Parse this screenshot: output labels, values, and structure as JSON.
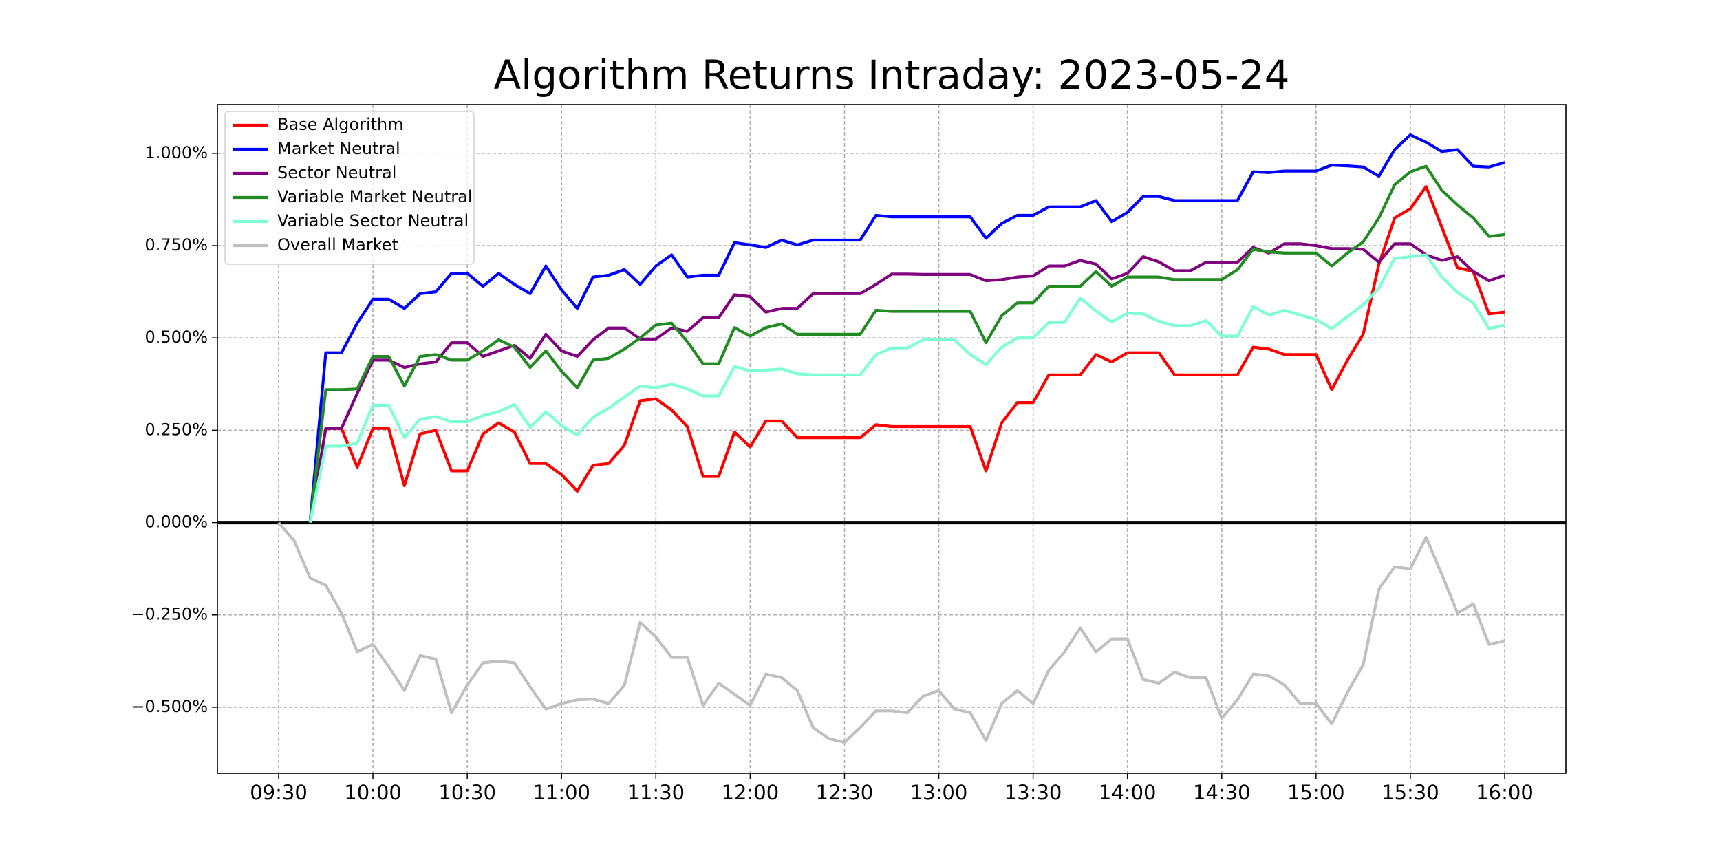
{
  "chart_data": {
    "type": "line",
    "title": "Algorithm Returns Intraday: 2023-05-24",
    "x": [
      "09:30",
      "09:35",
      "09:40",
      "09:45",
      "09:50",
      "09:55",
      "10:00",
      "10:05",
      "10:10",
      "10:15",
      "10:20",
      "10:25",
      "10:30",
      "10:35",
      "10:40",
      "10:45",
      "10:50",
      "10:55",
      "11:00",
      "11:05",
      "11:10",
      "11:15",
      "11:20",
      "11:25",
      "11:30",
      "11:35",
      "11:40",
      "11:45",
      "11:50",
      "11:55",
      "12:00",
      "12:05",
      "12:10",
      "12:15",
      "12:20",
      "12:25",
      "12:30",
      "12:35",
      "12:40",
      "12:45",
      "12:50",
      "12:55",
      "13:00",
      "13:05",
      "13:10",
      "13:15",
      "13:20",
      "13:25",
      "13:30",
      "13:35",
      "13:40",
      "13:45",
      "13:50",
      "13:55",
      "14:00",
      "14:05",
      "14:10",
      "14:15",
      "14:20",
      "14:25",
      "14:30",
      "14:35",
      "14:40",
      "14:45",
      "14:50",
      "14:55",
      "15:00",
      "15:05",
      "15:10",
      "15:15",
      "15:20",
      "15:25",
      "15:30",
      "15:35",
      "15:40",
      "15:45",
      "15:50",
      "15:55",
      "16:00"
    ],
    "xticks": [
      "09:30",
      "10:00",
      "10:30",
      "11:00",
      "11:30",
      "12:00",
      "12:30",
      "13:00",
      "13:30",
      "14:00",
      "14:30",
      "15:00",
      "15:30",
      "16:00"
    ],
    "ylim": [
      -0.679,
      1.132
    ],
    "yticks": [
      {
        "value": -0.5,
        "label": "−0.500%"
      },
      {
        "value": -0.25,
        "label": "−0.250%"
      },
      {
        "value": 0,
        "label": "0.000%"
      },
      {
        "value": 0.25,
        "label": "0.250%"
      },
      {
        "value": 0.5,
        "label": "0.500%"
      },
      {
        "value": 0.75,
        "label": "0.750%"
      },
      {
        "value": 1.0,
        "label": "1.000%"
      }
    ],
    "grid": true,
    "legend": "upper left",
    "series": [
      {
        "name": "Base Algorithm",
        "color": "#ff0000",
        "values": [
          null,
          null,
          0,
          0.255,
          0.255,
          0.15,
          0.255,
          0.255,
          0.1,
          0.24,
          0.25,
          0.14,
          0.14,
          0.24,
          0.27,
          0.245,
          0.16,
          0.16,
          0.13,
          0.085,
          0.155,
          0.16,
          0.21,
          0.33,
          0.335,
          0.305,
          0.26,
          0.125,
          0.125,
          0.245,
          0.205,
          0.275,
          0.275,
          0.23,
          0.23,
          0.23,
          0.23,
          0.23,
          0.265,
          0.26,
          0.26,
          0.26,
          0.26,
          0.26,
          0.26,
          0.14,
          0.27,
          0.325,
          0.325,
          0.4,
          0.4,
          0.4,
          0.455,
          0.435,
          0.46,
          0.46,
          0.46,
          0.4,
          0.4,
          0.4,
          0.4,
          0.4,
          0.475,
          0.47,
          0.455,
          0.455,
          0.455,
          0.36,
          0.44,
          0.51,
          0.7,
          0.825,
          0.85,
          0.91,
          0.8,
          0.69,
          0.68,
          0.565,
          0.57
        ]
      },
      {
        "name": "Market Neutral",
        "color": "#0000ff",
        "values": [
          null,
          null,
          0,
          0.46,
          0.46,
          0.54,
          0.605,
          0.605,
          0.58,
          0.62,
          0.625,
          0.675,
          0.675,
          0.64,
          0.675,
          0.645,
          0.62,
          0.695,
          0.63,
          0.58,
          0.665,
          0.67,
          0.685,
          0.645,
          0.695,
          0.725,
          0.665,
          0.67,
          0.67,
          0.758,
          0.752,
          0.745,
          0.765,
          0.752,
          0.765,
          0.765,
          0.765,
          0.765,
          0.832,
          0.828,
          0.828,
          0.828,
          0.828,
          0.828,
          0.828,
          0.77,
          0.81,
          0.832,
          0.832,
          0.855,
          0.855,
          0.855,
          0.872,
          0.815,
          0.84,
          0.883,
          0.883,
          0.872,
          0.872,
          0.872,
          0.872,
          0.872,
          0.95,
          0.948,
          0.952,
          0.952,
          0.952,
          0.968,
          0.966,
          0.963,
          0.938,
          1.01,
          1.05,
          1.03,
          1.005,
          1.01,
          0.965,
          0.963,
          0.975
        ]
      },
      {
        "name": "Sector Neutral",
        "color": "#800080",
        "values": [
          null,
          null,
          0,
          0.255,
          0.255,
          0.35,
          0.44,
          0.44,
          0.42,
          0.43,
          0.435,
          0.487,
          0.487,
          0.45,
          0.465,
          0.48,
          0.445,
          0.51,
          0.465,
          0.45,
          0.495,
          0.527,
          0.527,
          0.497,
          0.497,
          0.527,
          0.518,
          0.555,
          0.555,
          0.617,
          0.612,
          0.57,
          0.58,
          0.58,
          0.62,
          0.62,
          0.62,
          0.62,
          0.645,
          0.673,
          0.673,
          0.672,
          0.672,
          0.672,
          0.672,
          0.655,
          0.658,
          0.665,
          0.668,
          0.695,
          0.695,
          0.71,
          0.7,
          0.66,
          0.675,
          0.72,
          0.706,
          0.682,
          0.682,
          0.705,
          0.705,
          0.705,
          0.745,
          0.73,
          0.755,
          0.755,
          0.75,
          0.742,
          0.742,
          0.74,
          0.705,
          0.755,
          0.755,
          0.725,
          0.71,
          0.72,
          0.68,
          0.655,
          0.67
        ]
      },
      {
        "name": "Variable Market Neutral",
        "color": "#228b22",
        "values": [
          null,
          null,
          0,
          0.36,
          0.36,
          0.362,
          0.45,
          0.45,
          0.37,
          0.45,
          0.455,
          0.44,
          0.44,
          0.465,
          0.495,
          0.475,
          0.42,
          0.465,
          0.41,
          0.365,
          0.44,
          0.445,
          0.47,
          0.5,
          0.535,
          0.54,
          0.49,
          0.43,
          0.43,
          0.528,
          0.505,
          0.528,
          0.538,
          0.51,
          0.51,
          0.51,
          0.51,
          0.51,
          0.575,
          0.572,
          0.572,
          0.572,
          0.572,
          0.572,
          0.572,
          0.487,
          0.56,
          0.595,
          0.595,
          0.64,
          0.64,
          0.64,
          0.68,
          0.64,
          0.665,
          0.665,
          0.665,
          0.658,
          0.658,
          0.658,
          0.658,
          0.685,
          0.74,
          0.733,
          0.73,
          0.73,
          0.73,
          0.695,
          0.73,
          0.76,
          0.825,
          0.915,
          0.95,
          0.965,
          0.9,
          0.86,
          0.825,
          0.775,
          0.78
        ]
      },
      {
        "name": "Variable Sector Neutral",
        "color": "#7fffd4",
        "values": [
          null,
          null,
          0,
          0.207,
          0.207,
          0.215,
          0.318,
          0.318,
          0.23,
          0.28,
          0.287,
          0.273,
          0.273,
          0.29,
          0.3,
          0.32,
          0.258,
          0.3,
          0.262,
          0.237,
          0.285,
          0.31,
          0.34,
          0.37,
          0.365,
          0.375,
          0.362,
          0.343,
          0.343,
          0.423,
          0.41,
          0.413,
          0.416,
          0.403,
          0.4,
          0.4,
          0.4,
          0.4,
          0.455,
          0.473,
          0.473,
          0.495,
          0.495,
          0.495,
          0.455,
          0.428,
          0.475,
          0.5,
          0.5,
          0.542,
          0.542,
          0.608,
          0.573,
          0.543,
          0.567,
          0.565,
          0.545,
          0.533,
          0.533,
          0.547,
          0.505,
          0.505,
          0.585,
          0.562,
          0.575,
          0.562,
          0.55,
          0.525,
          0.558,
          0.59,
          0.635,
          0.715,
          0.72,
          0.725,
          0.665,
          0.623,
          0.595,
          0.525,
          0.535
        ]
      },
      {
        "name": "Overall Market",
        "color": "#c0c0c0",
        "values": [
          0,
          -0.05,
          -0.15,
          -0.17,
          -0.245,
          -0.35,
          -0.33,
          -0.39,
          -0.455,
          -0.36,
          -0.37,
          -0.515,
          -0.44,
          -0.38,
          -0.375,
          -0.38,
          -0.445,
          -0.505,
          -0.49,
          -0.48,
          -0.478,
          -0.49,
          -0.44,
          -0.27,
          -0.31,
          -0.365,
          -0.365,
          -0.495,
          -0.435,
          -0.465,
          -0.495,
          -0.41,
          -0.42,
          -0.455,
          -0.555,
          -0.585,
          -0.595,
          -0.555,
          -0.51,
          -0.51,
          -0.515,
          -0.47,
          -0.455,
          -0.505,
          -0.515,
          -0.59,
          -0.49,
          -0.455,
          -0.49,
          -0.4,
          -0.35,
          -0.285,
          -0.35,
          -0.315,
          -0.315,
          -0.425,
          -0.435,
          -0.405,
          -0.42,
          -0.42,
          -0.53,
          -0.48,
          -0.41,
          -0.415,
          -0.44,
          -0.49,
          -0.49,
          -0.545,
          -0.46,
          -0.385,
          -0.18,
          -0.12,
          -0.125,
          -0.04,
          -0.14,
          -0.245,
          -0.22,
          -0.33,
          -0.32
        ]
      }
    ]
  }
}
